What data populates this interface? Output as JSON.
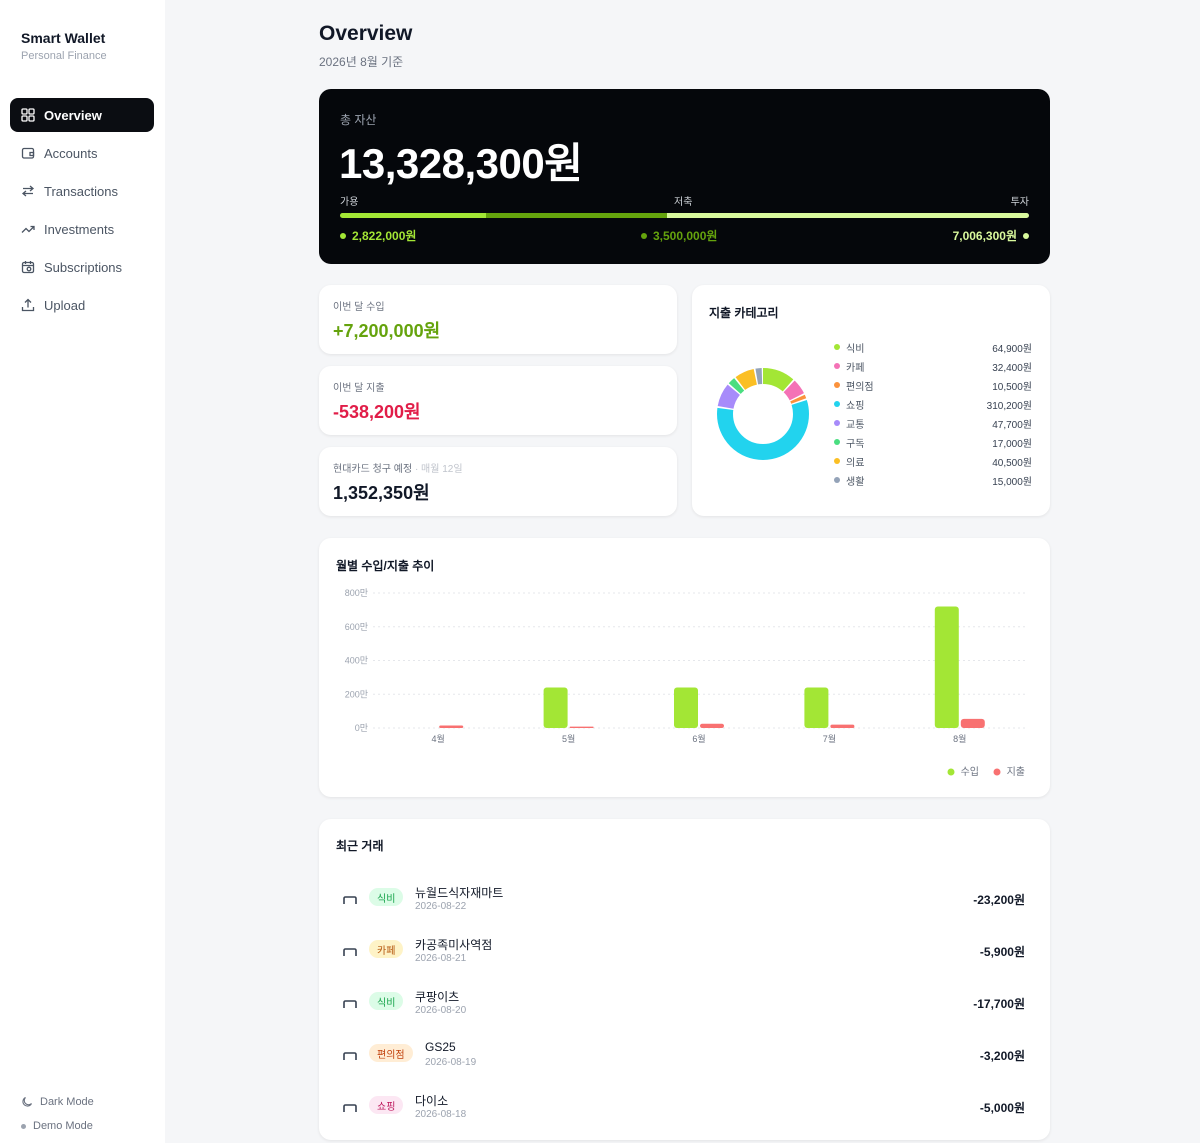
{
  "brand": {
    "title": "Smart Wallet",
    "subtitle": "Personal Finance"
  },
  "nav": [
    {
      "label": "Overview",
      "icon": "grid-icon",
      "active": true
    },
    {
      "label": "Accounts",
      "icon": "wallet-icon",
      "active": false
    },
    {
      "label": "Transactions",
      "icon": "swap-arrows-icon",
      "active": false
    },
    {
      "label": "Investments",
      "icon": "trending-up-icon",
      "active": false
    },
    {
      "label": "Subscriptions",
      "icon": "calendar-clock-icon",
      "active": false
    },
    {
      "label": "Upload",
      "icon": "upload-icon",
      "active": false
    }
  ],
  "footer": {
    "dark_mode": "Dark Mode",
    "demo_mode": "Demo Mode"
  },
  "header": {
    "title": "Overview",
    "subtitle": "2026년 8월 기준"
  },
  "total_assets": {
    "label": "총 자산",
    "amount": "13,328,300원",
    "segments": [
      {
        "label": "가용",
        "value": "2,822,000원",
        "share": 0.212,
        "color": "#a3e635"
      },
      {
        "label": "저축",
        "value": "3,500,000원",
        "share": 0.263,
        "color": "#65a30d"
      },
      {
        "label": "투자",
        "value": "7,006,300원",
        "share": 0.525,
        "color": "#d9f99d"
      }
    ]
  },
  "stats": {
    "income": {
      "label": "이번 달 수입",
      "value": "+7,200,000원",
      "color": "#65a30d"
    },
    "expense": {
      "label": "이번 달 지출",
      "value": "-538,200원",
      "color": "#e11d48"
    },
    "card_bill": {
      "label": "현대카드 청구 예정",
      "note": "· 매월 12일",
      "value": "1,352,350원",
      "color": "#111827"
    }
  },
  "category": {
    "title": "지출 카테고리",
    "items": [
      {
        "name": "식비",
        "amount": "64,900원",
        "value": 64900,
        "color": "#a3e635"
      },
      {
        "name": "카페",
        "amount": "32,400원",
        "value": 32400,
        "color": "#f472b6"
      },
      {
        "name": "편의점",
        "amount": "10,500원",
        "value": 10500,
        "color": "#fb923c"
      },
      {
        "name": "쇼핑",
        "amount": "310,200원",
        "value": 310200,
        "color": "#22d3ee"
      },
      {
        "name": "교통",
        "amount": "47,700원",
        "value": 47700,
        "color": "#a78bfa"
      },
      {
        "name": "구독",
        "amount": "17,000원",
        "value": 17000,
        "color": "#4ade80"
      },
      {
        "name": "의료",
        "amount": "40,500원",
        "value": 40500,
        "color": "#fbbf24"
      },
      {
        "name": "생활",
        "amount": "15,000원",
        "value": 15000,
        "color": "#94a3b8"
      }
    ]
  },
  "chart_data": {
    "type": "bar",
    "title": "월별 수입/지출 추이",
    "categories": [
      "4월",
      "5월",
      "6월",
      "7월",
      "8월"
    ],
    "series": [
      {
        "name": "수입",
        "color": "#a3e635",
        "values": [
          0,
          240,
          240,
          240,
          720
        ]
      },
      {
        "name": "지출",
        "color": "#f87171",
        "values": [
          15,
          8,
          25,
          20,
          54
        ]
      }
    ],
    "yticks": [
      "0만",
      "200만",
      "400만",
      "600만",
      "800만"
    ],
    "ylim": [
      0,
      800
    ],
    "grid": true,
    "legend": "bottom-right"
  },
  "recent": {
    "title": "최근 거래",
    "items": [
      {
        "category": "식비",
        "name": "뉴월드식자재마트",
        "date": "2026-08-22",
        "amount": "-23,200원",
        "badge_bg": "#dcfce7",
        "badge_fg": "#16a34a"
      },
      {
        "category": "카페",
        "name": "카공족미사역점",
        "date": "2026-08-21",
        "amount": "-5,900원",
        "badge_bg": "#fef3c7",
        "badge_fg": "#b45309"
      },
      {
        "category": "식비",
        "name": "쿠팡이츠",
        "date": "2026-08-20",
        "amount": "-17,700원",
        "badge_bg": "#dcfce7",
        "badge_fg": "#16a34a"
      },
      {
        "category": "편의점",
        "name": "GS25",
        "date": "2026-08-19",
        "amount": "-3,200원",
        "badge_bg": "#ffedd5",
        "badge_fg": "#c2410c"
      },
      {
        "category": "쇼핑",
        "name": "다이소",
        "date": "2026-08-18",
        "amount": "-5,000원",
        "badge_bg": "#fce7f3",
        "badge_fg": "#be185d"
      }
    ]
  }
}
